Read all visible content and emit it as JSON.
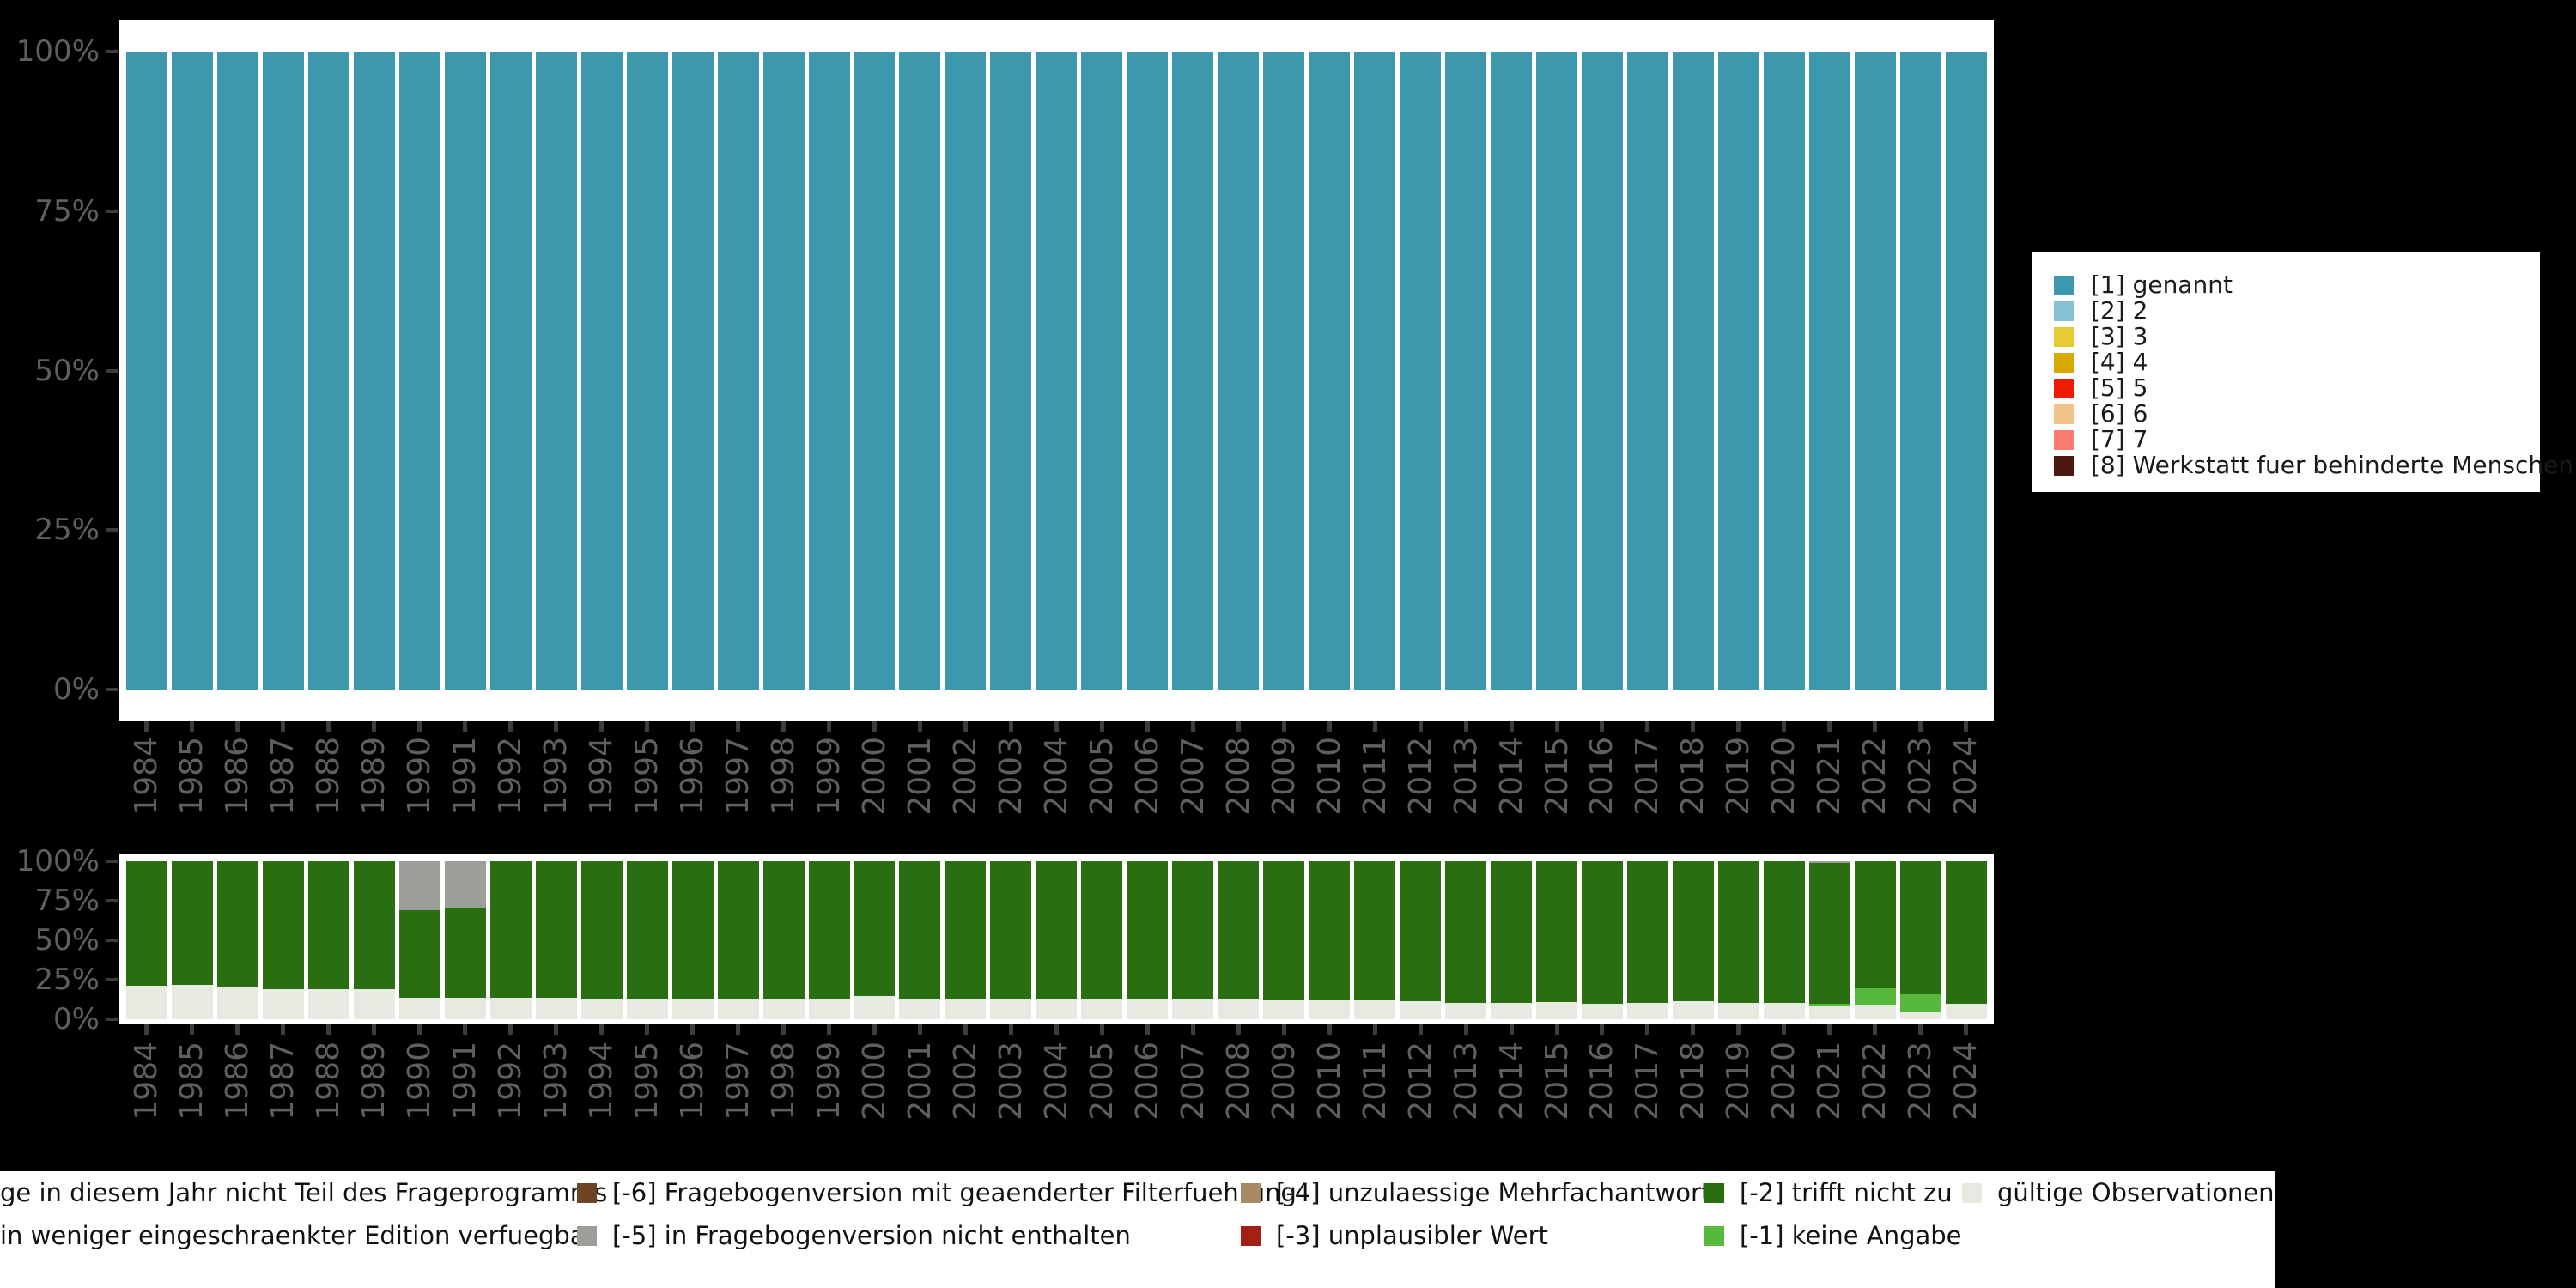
{
  "colors": {
    "background": "#000000",
    "panel": "#ffffff",
    "axis_tick": "#3c3c3c",
    "axis_label": "#5f5f5f",
    "legend_text": "#1a1a1a"
  },
  "right_legend": {
    "items": [
      {
        "label": "[1] genannt",
        "color": "#3D98AD"
      },
      {
        "label": "[2] 2",
        "color": "#87C2D4"
      },
      {
        "label": "[3] 3",
        "color": "#E6CB35"
      },
      {
        "label": "[4] 4",
        "color": "#D7A900"
      },
      {
        "label": "[5] 5",
        "color": "#EE1A04"
      },
      {
        "label": "[6] 6",
        "color": "#F1C38B"
      },
      {
        "label": "[7] 7",
        "color": "#FA7C73"
      },
      {
        "label": "[8] Werkstatt fuer behinderte Menschen",
        "color": "#4C1710"
      }
    ]
  },
  "bottom_legend": {
    "rows": [
      [
        {
          "label": "ge in diesem Jahr nicht Teil des Frageprogramms",
          "color": null
        },
        {
          "label": "[-6] Fragebogenversion mit geaenderter Filterfuehrung",
          "color": "#6E4423"
        },
        {
          "label": "[-4] unzulaessige Mehrfachantwort",
          "color": "#AA8A64"
        },
        {
          "label": "[-2] trifft nicht zu",
          "color": "#2A6E12"
        },
        {
          "label": "gültige Observationen",
          "color": "#E6EAE0"
        }
      ],
      [
        {
          "label": "in weniger eingeschraenkter Edition verfuegbar",
          "color": null
        },
        {
          "label": "[-5] in Fragebogenversion nicht enthalten",
          "color": "#9C9F97"
        },
        {
          "label": "[-3] unplausibler Wert",
          "color": "#A32015"
        },
        {
          "label": "[-1] keine Angabe",
          "color": "#57B93C"
        }
      ]
    ]
  },
  "chart_data": [
    {
      "type": "bar",
      "stacking": "percent",
      "title": "",
      "x": [
        "1984",
        "1985",
        "1986",
        "1987",
        "1988",
        "1989",
        "1990",
        "1991",
        "1992",
        "1993",
        "1994",
        "1995",
        "1996",
        "1997",
        "1998",
        "1999",
        "2000",
        "2001",
        "2002",
        "2003",
        "2004",
        "2005",
        "2006",
        "2007",
        "2008",
        "2009",
        "2010",
        "2011",
        "2012",
        "2013",
        "2014",
        "2015",
        "2016",
        "2017",
        "2018",
        "2019",
        "2020",
        "2021",
        "2022",
        "2023",
        "2024"
      ],
      "y_tick_labels": [
        "100%",
        "75%",
        "50%",
        "25%",
        "0%"
      ],
      "ylim": [
        0,
        100
      ],
      "grid": false,
      "legend_position": "right",
      "series": [
        {
          "name": "[1] genannt",
          "color": "#3D98AD",
          "values": [
            100,
            100,
            100,
            100,
            100,
            100,
            100,
            100,
            100,
            100,
            100,
            100,
            100,
            100,
            100,
            100,
            100,
            100,
            100,
            100,
            100,
            100,
            100,
            100,
            100,
            100,
            100,
            100,
            100,
            100,
            100,
            100,
            100,
            100,
            100,
            100,
            100,
            100,
            100,
            100,
            100
          ]
        }
      ]
    },
    {
      "type": "bar",
      "stacking": "percent",
      "title": "",
      "x": [
        "1984",
        "1985",
        "1986",
        "1987",
        "1988",
        "1989",
        "1990",
        "1991",
        "1992",
        "1993",
        "1994",
        "1995",
        "1996",
        "1997",
        "1998",
        "1999",
        "2000",
        "2001",
        "2002",
        "2003",
        "2004",
        "2005",
        "2006",
        "2007",
        "2008",
        "2009",
        "2010",
        "2011",
        "2012",
        "2013",
        "2014",
        "2015",
        "2016",
        "2017",
        "2018",
        "2019",
        "2020",
        "2021",
        "2022",
        "2023",
        "2024"
      ],
      "y_tick_labels": [
        "100%",
        "75%",
        "50%",
        "25%",
        "0%"
      ],
      "ylim": [
        0,
        100
      ],
      "grid": false,
      "legend_position": "bottom",
      "series": [
        {
          "name": "gültige Observationen",
          "color": "#E6EAE0",
          "values": [
            21,
            21.5,
            20.5,
            19,
            19,
            19,
            13.5,
            13.5,
            13.5,
            13.5,
            13,
            13,
            13,
            12.5,
            13,
            12.5,
            14.5,
            12.5,
            13,
            13,
            12.5,
            13,
            13,
            13,
            12.5,
            12,
            12,
            12,
            11.5,
            10.5,
            10.5,
            11,
            10,
            10.5,
            11.5,
            10.5,
            10.5,
            8,
            8.5,
            5,
            10
          ]
        },
        {
          "name": "[-1] keine Angabe",
          "color": "#57B93C",
          "values": [
            0,
            0,
            0,
            0,
            0,
            0,
            0,
            0,
            0,
            0,
            0,
            0,
            0,
            0,
            0,
            0,
            0,
            0,
            0,
            0,
            0,
            0,
            0,
            0,
            0,
            0,
            0,
            0,
            0,
            0,
            0,
            0,
            0,
            0,
            0,
            0,
            0,
            2,
            11,
            11,
            0
          ]
        },
        {
          "name": "[-2] trifft nicht zu",
          "color": "#2A6E12",
          "values": [
            79,
            78.5,
            79.5,
            81,
            81,
            81,
            55.5,
            57,
            86.5,
            86.5,
            87,
            87,
            87,
            87.5,
            87,
            87.5,
            85.5,
            87.5,
            87,
            87,
            87.5,
            87,
            87,
            87,
            87.5,
            88,
            88,
            88,
            88.5,
            89.5,
            89.5,
            89,
            90,
            89.5,
            88.5,
            89.5,
            89.5,
            89,
            80.5,
            84,
            90
          ]
        },
        {
          "name": "[-5] in Fragebogenversion nicht enthalten",
          "color": "#9C9F97",
          "values": [
            0,
            0,
            0,
            0,
            0,
            0,
            31,
            29.5,
            0,
            0,
            0,
            0,
            0,
            0,
            0,
            0,
            0,
            0,
            0,
            0,
            0,
            0,
            0,
            0,
            0,
            0,
            0,
            0,
            0,
            0,
            0,
            0,
            0,
            0,
            0,
            0,
            0,
            1,
            0,
            0,
            0
          ]
        }
      ]
    }
  ]
}
